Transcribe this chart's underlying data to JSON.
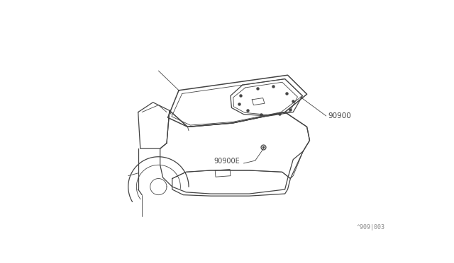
{
  "bg_color": "#ffffff",
  "line_color": "#444444",
  "text_color": "#444444",
  "label_90900": "90900",
  "label_90900E": "90900E",
  "label_ref": "^909|003",
  "lw": 0.9,
  "lw_thin": 0.6,
  "lw_thick": 1.1
}
